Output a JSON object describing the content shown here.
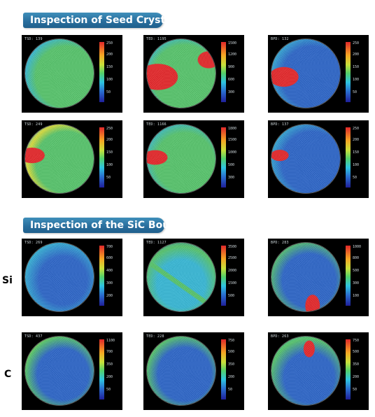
{
  "sections": [
    {
      "title": "Inspection of Seed Crystal"
    },
    {
      "title": "Inspection of the SiC Boule"
    }
  ],
  "row_labels": {
    "si": "Si",
    "c": "C"
  },
  "palette": {
    "green": "#55c46a",
    "blue": "#2a64c8",
    "cyan": "#35b7d6",
    "yellow": "#d7dc3a",
    "red": "#e52528",
    "bannerTop": "#3f8fba",
    "bannerBottom": "#1f5f8c"
  },
  "panels": [
    {
      "caption": "TSD: 139",
      "ticks": [
        "250",
        "200",
        "150",
        "100",
        "50"
      ],
      "pattern": "noisy-green"
    },
    {
      "caption": "TED: 1195",
      "ticks": [
        "1500",
        "1200",
        "900",
        "600",
        "300"
      ],
      "pattern": "green-left-red-blob"
    },
    {
      "caption": "BPD: 132",
      "ticks": [
        "250",
        "200",
        "150",
        "100",
        "50"
      ],
      "pattern": "blue-left-red"
    },
    {
      "caption": "TSD: 249",
      "ticks": [
        "250",
        "200",
        "150",
        "100",
        "50"
      ],
      "pattern": "noisy-green-left-red"
    },
    {
      "caption": "TED: 1166",
      "ticks": [
        "1800",
        "1500",
        "1000",
        "500",
        "300"
      ],
      "pattern": "green-left-red-small"
    },
    {
      "caption": "BPD: 137",
      "ticks": [
        "250",
        "200",
        "150",
        "100",
        "50"
      ],
      "pattern": "blue-left-red-small"
    },
    {
      "caption": "TSD: 269",
      "ticks": [
        "700",
        "600",
        "400",
        "300",
        "200"
      ],
      "pattern": "blue-cyan"
    },
    {
      "caption": "TED: 1127",
      "ticks": [
        "3500",
        "2500",
        "2000",
        "1500",
        "500"
      ],
      "pattern": "cyan-streaks"
    },
    {
      "caption": "BPD: 283",
      "ticks": [
        "1000",
        "800",
        "500",
        "300",
        "100"
      ],
      "pattern": "blue-green-bottom-red"
    },
    {
      "caption": "TSD: 437",
      "ticks": [
        "1100",
        "700",
        "350",
        "200",
        "50"
      ],
      "pattern": "blue-center-green-rim"
    },
    {
      "caption": "TED: 228",
      "ticks": [
        "750",
        "500",
        "350",
        "200",
        "50"
      ],
      "pattern": "blue-center-green-rim-light"
    },
    {
      "caption": "BPD: 263",
      "ticks": [
        "750",
        "500",
        "350",
        "200",
        "50"
      ],
      "pattern": "blue-mixed-red-top"
    }
  ]
}
